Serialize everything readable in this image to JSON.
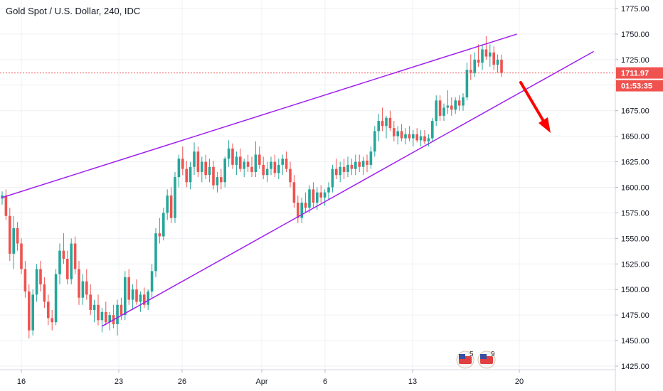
{
  "header": {
    "title": "Gold Spot / U.S. Dollar, 240, IDC"
  },
  "price_badge": {
    "price": "1711.97",
    "countdown": "01:53:35"
  },
  "events": [
    {
      "label": "5"
    },
    {
      "label": "9"
    }
  ],
  "colors": {
    "up": "#26a69a",
    "down": "#ef5350",
    "channel": "#a020f0",
    "arrow": "#ff0000",
    "price_line": "#ef5350"
  },
  "chart_data": {
    "type": "candlestick",
    "title": "Gold Spot / U.S. Dollar, 240, IDC",
    "ylim": [
      1420,
      1780
    ],
    "y_ticks": [
      "1425.00",
      "1450.00",
      "1475.00",
      "1500.00",
      "1525.00",
      "1550.00",
      "1575.00",
      "1600.00",
      "1625.00",
      "1650.00",
      "1675.00",
      "1700.00",
      "1725.00",
      "1750.00",
      "1775.00"
    ],
    "x_ticks": [
      "16",
      "23",
      "26",
      "Apr",
      "6",
      "13",
      "20"
    ],
    "last_price": 1711.97,
    "grid": true,
    "candles": [
      [
        1589,
        1596,
        1583,
        1592
      ],
      [
        1592,
        1598,
        1568,
        1572
      ],
      [
        1572,
        1580,
        1528,
        1535
      ],
      [
        1535,
        1572,
        1520,
        1560
      ],
      [
        1560,
        1566,
        1538,
        1545
      ],
      [
        1545,
        1550,
        1515,
        1520
      ],
      [
        1520,
        1528,
        1492,
        1498
      ],
      [
        1498,
        1505,
        1452,
        1460
      ],
      [
        1460,
        1500,
        1455,
        1495
      ],
      [
        1495,
        1525,
        1488,
        1520
      ],
      [
        1520,
        1528,
        1498,
        1505
      ],
      [
        1505,
        1512,
        1482,
        1488
      ],
      [
        1488,
        1495,
        1465,
        1472
      ],
      [
        1472,
        1480,
        1460,
        1468
      ],
      [
        1468,
        1520,
        1465,
        1515
      ],
      [
        1515,
        1545,
        1505,
        1538
      ],
      [
        1538,
        1555,
        1525,
        1530
      ],
      [
        1530,
        1538,
        1505,
        1510
      ],
      [
        1510,
        1550,
        1505,
        1545
      ],
      [
        1545,
        1552,
        1515,
        1520
      ],
      [
        1520,
        1528,
        1485,
        1492
      ],
      [
        1492,
        1515,
        1485,
        1508
      ],
      [
        1508,
        1520,
        1490,
        1495
      ],
      [
        1495,
        1505,
        1475,
        1480
      ],
      [
        1480,
        1490,
        1468,
        1485
      ],
      [
        1485,
        1495,
        1465,
        1470
      ],
      [
        1470,
        1482,
        1458,
        1478
      ],
      [
        1478,
        1488,
        1465,
        1468
      ],
      [
        1468,
        1478,
        1460,
        1475
      ],
      [
        1475,
        1485,
        1462,
        1466
      ],
      [
        1466,
        1490,
        1455,
        1485
      ],
      [
        1485,
        1492,
        1470,
        1475
      ],
      [
        1475,
        1518,
        1470,
        1512
      ],
      [
        1512,
        1520,
        1485,
        1490
      ],
      [
        1490,
        1505,
        1480,
        1500
      ],
      [
        1500,
        1510,
        1485,
        1488
      ],
      [
        1488,
        1498,
        1478,
        1495
      ],
      [
        1495,
        1502,
        1482,
        1485
      ],
      [
        1485,
        1500,
        1480,
        1498
      ],
      [
        1498,
        1525,
        1492,
        1518
      ],
      [
        1518,
        1560,
        1512,
        1555
      ],
      [
        1555,
        1570,
        1545,
        1552
      ],
      [
        1552,
        1580,
        1548,
        1575
      ],
      [
        1575,
        1598,
        1568,
        1592
      ],
      [
        1592,
        1600,
        1565,
        1570
      ],
      [
        1570,
        1615,
        1565,
        1610
      ],
      [
        1610,
        1632,
        1600,
        1628
      ],
      [
        1628,
        1640,
        1612,
        1618
      ],
      [
        1618,
        1626,
        1600,
        1605
      ],
      [
        1605,
        1625,
        1598,
        1620
      ],
      [
        1620,
        1644,
        1612,
        1635
      ],
      [
        1635,
        1640,
        1610,
        1615
      ],
      [
        1615,
        1630,
        1605,
        1625
      ],
      [
        1625,
        1632,
        1608,
        1612
      ],
      [
        1612,
        1628,
        1605,
        1620
      ],
      [
        1620,
        1626,
        1598,
        1602
      ],
      [
        1602,
        1615,
        1595,
        1610
      ],
      [
        1610,
        1618,
        1598,
        1605
      ],
      [
        1605,
        1630,
        1600,
        1628
      ],
      [
        1628,
        1646,
        1620,
        1638
      ],
      [
        1638,
        1643,
        1618,
        1622
      ],
      [
        1622,
        1635,
        1612,
        1630
      ],
      [
        1630,
        1638,
        1615,
        1618
      ],
      [
        1618,
        1628,
        1610,
        1625
      ],
      [
        1625,
        1632,
        1615,
        1620
      ],
      [
        1620,
        1630,
        1610,
        1615
      ],
      [
        1615,
        1645,
        1610,
        1632
      ],
      [
        1632,
        1640,
        1618,
        1622
      ],
      [
        1622,
        1630,
        1608,
        1612
      ],
      [
        1612,
        1625,
        1605,
        1618
      ],
      [
        1618,
        1630,
        1612,
        1625
      ],
      [
        1625,
        1632,
        1610,
        1614
      ],
      [
        1614,
        1628,
        1608,
        1622
      ],
      [
        1622,
        1632,
        1612,
        1628
      ],
      [
        1628,
        1635,
        1615,
        1618
      ],
      [
        1618,
        1625,
        1600,
        1605
      ],
      [
        1605,
        1612,
        1580,
        1585
      ],
      [
        1585,
        1592,
        1565,
        1570
      ],
      [
        1570,
        1590,
        1565,
        1585
      ],
      [
        1585,
        1595,
        1575,
        1580
      ],
      [
        1580,
        1602,
        1575,
        1598
      ],
      [
        1598,
        1605,
        1580,
        1585
      ],
      [
        1585,
        1600,
        1578,
        1595
      ],
      [
        1595,
        1602,
        1585,
        1590
      ],
      [
        1590,
        1598,
        1582,
        1595
      ],
      [
        1595,
        1605,
        1588,
        1600
      ],
      [
        1600,
        1622,
        1595,
        1618
      ],
      [
        1618,
        1628,
        1608,
        1612
      ],
      [
        1612,
        1625,
        1605,
        1620
      ],
      [
        1620,
        1628,
        1608,
        1615
      ],
      [
        1615,
        1630,
        1610,
        1622
      ],
      [
        1622,
        1628,
        1612,
        1618
      ],
      [
        1618,
        1632,
        1612,
        1625
      ],
      [
        1625,
        1632,
        1615,
        1620
      ],
      [
        1620,
        1630,
        1612,
        1626
      ],
      [
        1626,
        1632,
        1615,
        1622
      ],
      [
        1622,
        1640,
        1618,
        1635
      ],
      [
        1635,
        1660,
        1630,
        1655
      ],
      [
        1655,
        1672,
        1645,
        1665
      ],
      [
        1665,
        1678,
        1655,
        1660
      ],
      [
        1660,
        1670,
        1648,
        1668
      ],
      [
        1668,
        1675,
        1655,
        1658
      ],
      [
        1658,
        1665,
        1645,
        1650
      ],
      [
        1650,
        1660,
        1642,
        1655
      ],
      [
        1655,
        1662,
        1645,
        1648
      ],
      [
        1648,
        1658,
        1642,
        1652
      ],
      [
        1652,
        1660,
        1645,
        1648
      ],
      [
        1648,
        1656,
        1640,
        1652
      ],
      [
        1652,
        1658,
        1644,
        1646
      ],
      [
        1646,
        1656,
        1640,
        1650
      ],
      [
        1650,
        1656,
        1642,
        1645
      ],
      [
        1645,
        1652,
        1640,
        1648
      ],
      [
        1648,
        1668,
        1645,
        1665
      ],
      [
        1665,
        1690,
        1660,
        1685
      ],
      [
        1685,
        1690,
        1665,
        1670
      ],
      [
        1670,
        1682,
        1665,
        1678
      ],
      [
        1678,
        1695,
        1672,
        1680
      ],
      [
        1680,
        1688,
        1670,
        1676
      ],
      [
        1676,
        1688,
        1672,
        1685
      ],
      [
        1685,
        1690,
        1675,
        1680
      ],
      [
        1680,
        1692,
        1675,
        1688
      ],
      [
        1688,
        1722,
        1685,
        1715
      ],
      [
        1715,
        1730,
        1705,
        1712
      ],
      [
        1712,
        1732,
        1708,
        1725
      ],
      [
        1725,
        1740,
        1718,
        1722
      ],
      [
        1722,
        1740,
        1715,
        1735
      ],
      [
        1735,
        1748,
        1725,
        1728
      ],
      [
        1728,
        1740,
        1718,
        1732
      ],
      [
        1732,
        1738,
        1715,
        1720
      ],
      [
        1720,
        1730,
        1712,
        1725
      ],
      [
        1725,
        1730,
        1708,
        1712
      ]
    ],
    "channel_upper": {
      "from": [
        0,
        1590
      ],
      "to": [
        134,
        1750
      ]
    },
    "channel_lower": {
      "from": [
        26,
        1464
      ],
      "to": [
        154,
        1733
      ]
    },
    "arrow_direction": "down"
  }
}
